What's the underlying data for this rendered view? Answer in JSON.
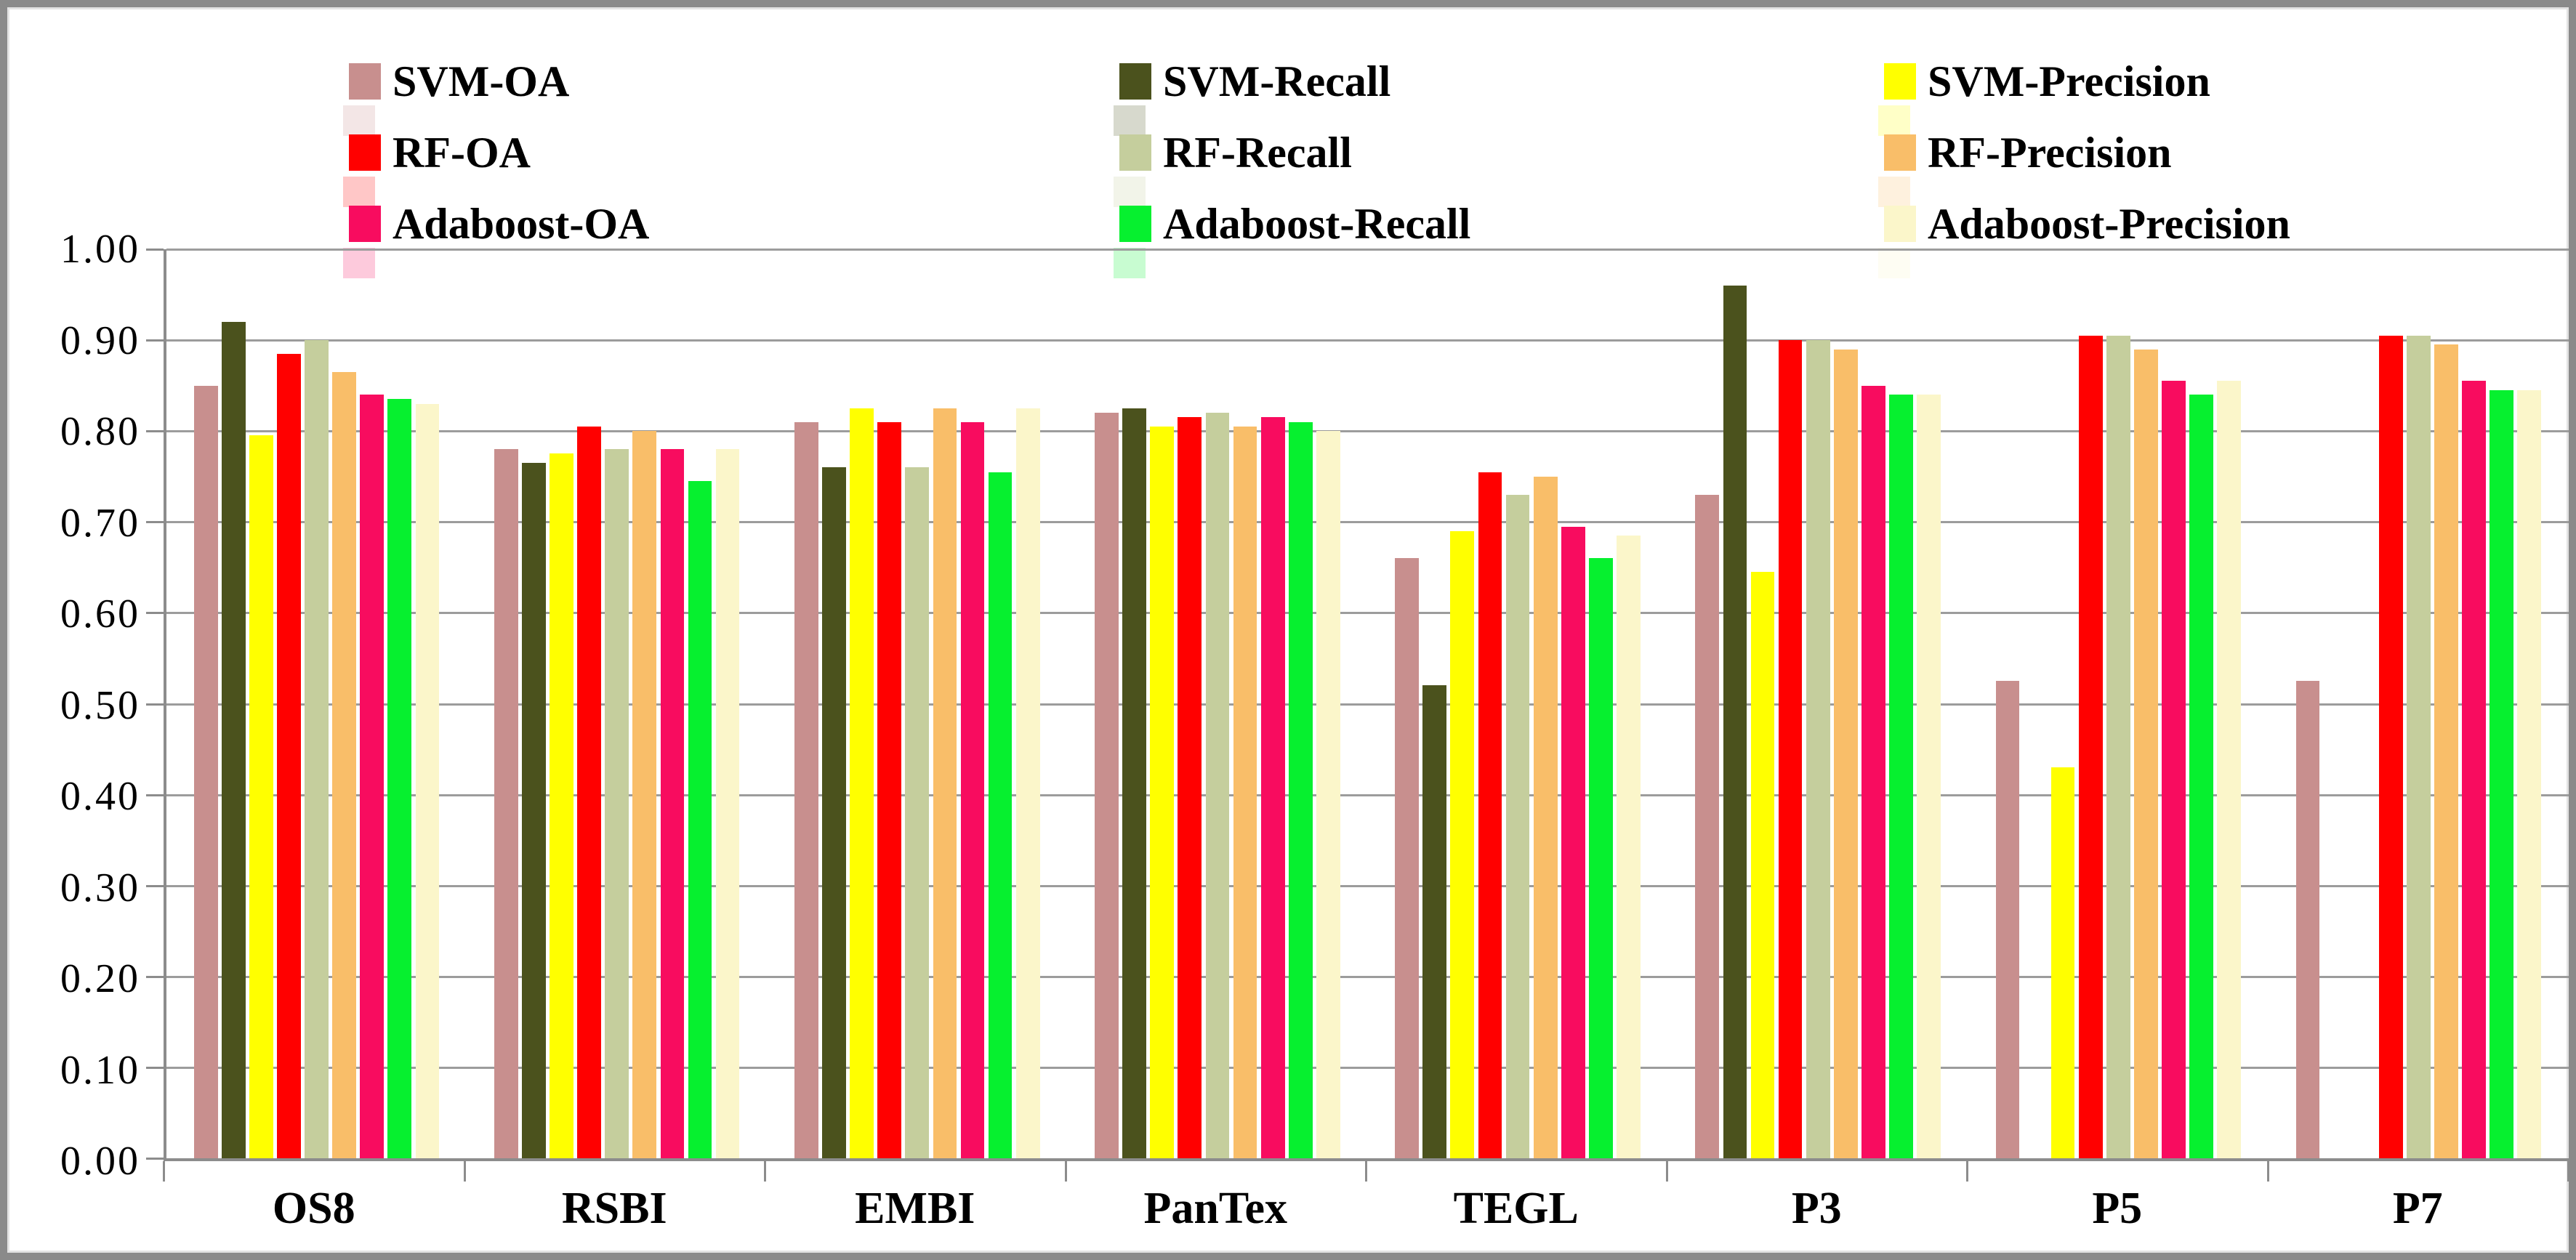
{
  "figure": {
    "background": "#FFFFFF",
    "border_color": "#8A8A8A",
    "gridline_color": "#9C9C9C",
    "axis_color": "#8C8C8C",
    "text_color": "#000000"
  },
  "chart_data": {
    "type": "bar",
    "title": "",
    "xlabel": "",
    "ylabel": "",
    "ylim": [
      0.0,
      1.0
    ],
    "grid": true,
    "legend_position": "top",
    "yticks": [
      "0.00",
      "0.10",
      "0.20",
      "0.30",
      "0.40",
      "0.50",
      "0.60",
      "0.70",
      "0.80",
      "0.90",
      "1.00"
    ],
    "categories": [
      "OS8",
      "RSBI",
      "EMBI",
      "PanTex",
      "TEGL",
      "P3",
      "P5",
      "P7"
    ],
    "series": [
      {
        "name": "SVM-OA",
        "color": "#C88F8E",
        "values": [
          0.85,
          0.78,
          0.81,
          0.82,
          0.66,
          0.73,
          0.525,
          0.525
        ]
      },
      {
        "name": "SVM-Recall",
        "color": "#4B521D",
        "values": [
          0.92,
          0.765,
          0.76,
          0.825,
          0.52,
          0.96,
          null,
          null
        ]
      },
      {
        "name": "SVM-Precision",
        "color": "#FFFF00",
        "values": [
          0.795,
          0.775,
          0.825,
          0.805,
          0.69,
          0.645,
          0.43,
          null
        ]
      },
      {
        "name": "RF-OA",
        "color": "#FF0000",
        "values": [
          0.885,
          0.805,
          0.81,
          0.815,
          0.755,
          0.9,
          0.905,
          0.905
        ]
      },
      {
        "name": "RF-Recall",
        "color": "#C5CE9D",
        "values": [
          0.9,
          0.78,
          0.76,
          0.82,
          0.73,
          0.9,
          0.905,
          0.905
        ]
      },
      {
        "name": "RF-Precision",
        "color": "#F9BE69",
        "values": [
          0.865,
          0.8,
          0.825,
          0.805,
          0.75,
          0.89,
          0.89,
          0.895
        ]
      },
      {
        "name": "Adaboost-OA",
        "color": "#F80C5F",
        "values": [
          0.84,
          0.78,
          0.81,
          0.815,
          0.695,
          0.85,
          0.855,
          0.855
        ]
      },
      {
        "name": "Adaboost-Recall",
        "color": "#06F02F",
        "values": [
          0.835,
          0.745,
          0.755,
          0.81,
          0.66,
          0.84,
          0.84,
          0.845
        ]
      },
      {
        "name": "Adaboost-Precision",
        "color": "#FBF6CA",
        "values": [
          0.83,
          0.78,
          0.825,
          0.8,
          0.685,
          0.84,
          0.855,
          0.845
        ]
      }
    ]
  }
}
